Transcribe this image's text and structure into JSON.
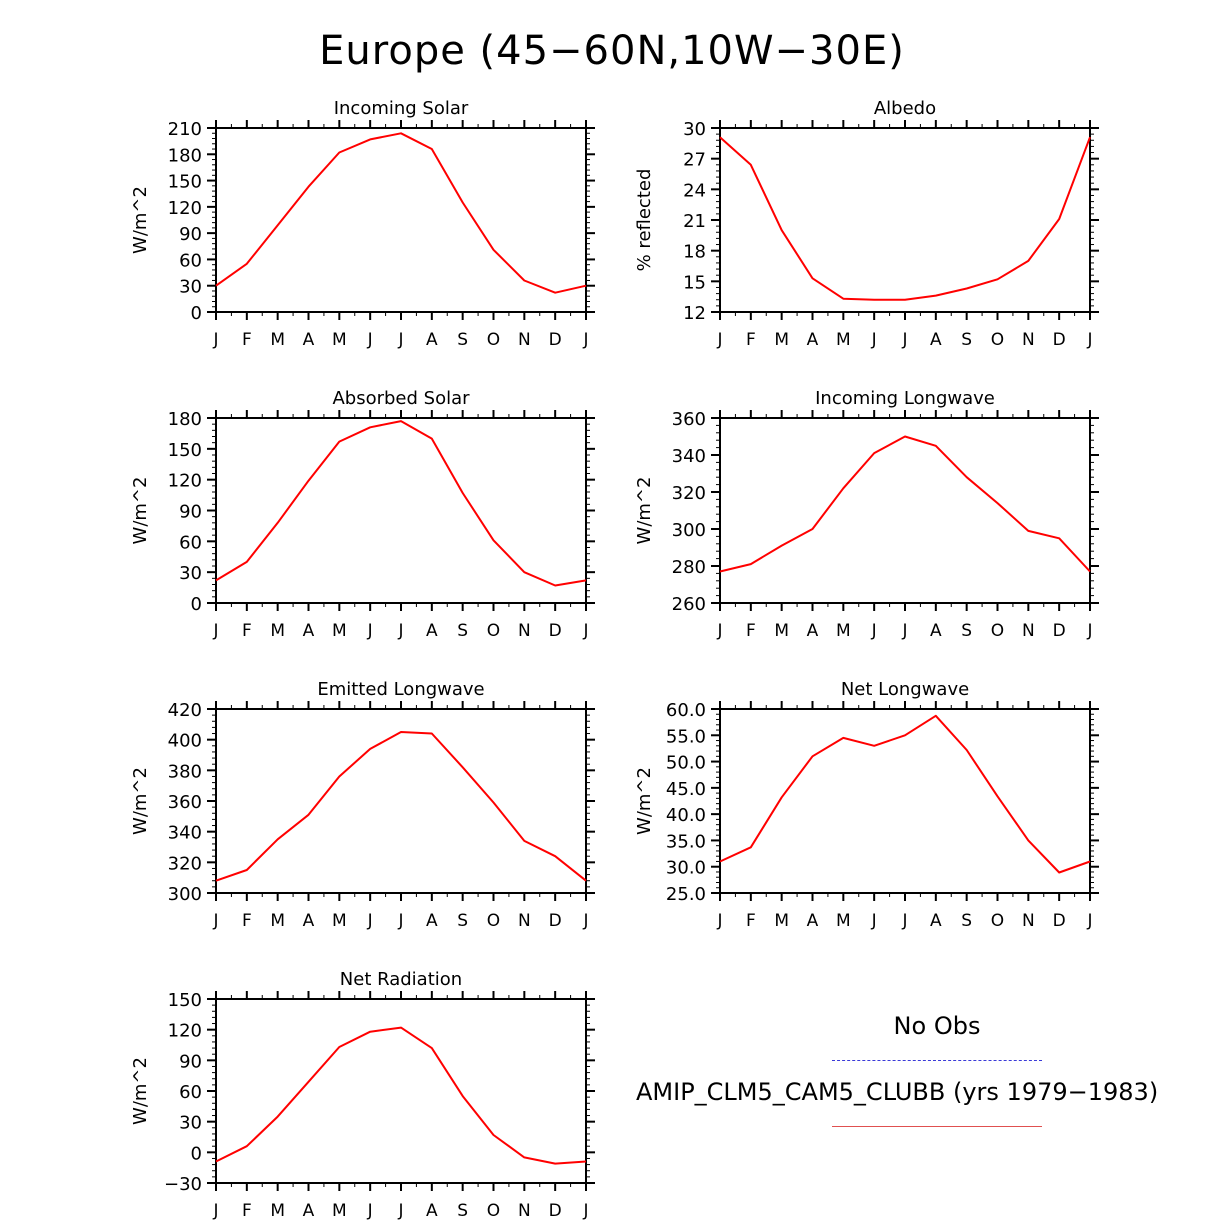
{
  "title": "Europe (45−60N,10W−30E)",
  "colors": {
    "model_line": "#ff0000",
    "obs_line": "#3a3ad8",
    "axis": "#000000"
  },
  "legend": {
    "obs_label": "No Obs",
    "model_label": "AMIP_CLM5_CAM5_CLUBB (yrs 1979−1983)"
  },
  "chart_data": [
    {
      "type": "line",
      "title": "Incoming Solar",
      "ylabel": "W/m^2",
      "categories": [
        "J",
        "F",
        "M",
        "A",
        "M",
        "J",
        "J",
        "A",
        "S",
        "O",
        "N",
        "D",
        "J"
      ],
      "yticks": [
        "0",
        "30",
        "60",
        "90",
        "120",
        "150",
        "180",
        "210"
      ],
      "ylim": [
        0,
        210
      ],
      "series": [
        {
          "name": "AMIP_CLM5_CAM5_CLUBB",
          "values": [
            30,
            55,
            99,
            143,
            182,
            197,
            204,
            186,
            125,
            71,
            36,
            22,
            30
          ]
        }
      ]
    },
    {
      "type": "line",
      "title": "Albedo",
      "ylabel": "% reflected",
      "categories": [
        "J",
        "F",
        "M",
        "A",
        "M",
        "J",
        "J",
        "A",
        "S",
        "O",
        "N",
        "D",
        "J"
      ],
      "yticks": [
        "12",
        "15",
        "18",
        "21",
        "24",
        "27",
        "30"
      ],
      "ylim": [
        12,
        30
      ],
      "series": [
        {
          "name": "AMIP_CLM5_CAM5_CLUBB",
          "values": [
            29.1,
            26.4,
            20.0,
            15.3,
            13.3,
            13.2,
            13.2,
            13.6,
            14.3,
            15.2,
            17.0,
            21.1,
            29.1
          ]
        }
      ]
    },
    {
      "type": "line",
      "title": "Absorbed Solar",
      "ylabel": "W/m^2",
      "categories": [
        "J",
        "F",
        "M",
        "A",
        "M",
        "J",
        "J",
        "A",
        "S",
        "O",
        "N",
        "D",
        "J"
      ],
      "yticks": [
        "0",
        "30",
        "60",
        "90",
        "120",
        "150",
        "180"
      ],
      "ylim": [
        0,
        180
      ],
      "series": [
        {
          "name": "AMIP_CLM5_CAM5_CLUBB",
          "values": [
            22,
            40,
            78,
            119,
            157,
            171,
            177,
            160,
            107,
            61,
            30,
            17,
            22
          ]
        }
      ]
    },
    {
      "type": "line",
      "title": "Incoming Longwave",
      "ylabel": "W/m^2",
      "categories": [
        "J",
        "F",
        "M",
        "A",
        "M",
        "J",
        "J",
        "A",
        "S",
        "O",
        "N",
        "D",
        "J"
      ],
      "yticks": [
        "260",
        "280",
        "300",
        "320",
        "340",
        "360"
      ],
      "ylim": [
        260,
        360
      ],
      "series": [
        {
          "name": "AMIP_CLM5_CAM5_CLUBB",
          "values": [
            277,
            281,
            291,
            300,
            322,
            341,
            350,
            345,
            328,
            314,
            299,
            295,
            277
          ]
        }
      ]
    },
    {
      "type": "line",
      "title": "Emitted Longwave",
      "ylabel": "W/m^2",
      "categories": [
        "J",
        "F",
        "M",
        "A",
        "M",
        "J",
        "J",
        "A",
        "S",
        "O",
        "N",
        "D",
        "J"
      ],
      "yticks": [
        "300",
        "320",
        "340",
        "360",
        "380",
        "400",
        "420"
      ],
      "ylim": [
        300,
        420
      ],
      "series": [
        {
          "name": "AMIP_CLM5_CAM5_CLUBB",
          "values": [
            308,
            315,
            335,
            351,
            376,
            394,
            405,
            404,
            382,
            359,
            334,
            324,
            308
          ]
        }
      ]
    },
    {
      "type": "line",
      "title": "Net Longwave",
      "ylabel": "W/m^2",
      "categories": [
        "J",
        "F",
        "M",
        "A",
        "M",
        "J",
        "J",
        "A",
        "S",
        "O",
        "N",
        "D",
        "J"
      ],
      "yticks": [
        "25.0",
        "30.0",
        "35.0",
        "40.0",
        "45.0",
        "50.0",
        "55.0",
        "60.0"
      ],
      "ylim": [
        25,
        60
      ],
      "series": [
        {
          "name": "AMIP_CLM5_CAM5_CLUBB",
          "values": [
            31.0,
            33.7,
            43.2,
            51.0,
            54.5,
            53.0,
            55.0,
            58.7,
            52.2,
            43.4,
            35.0,
            28.9,
            31.0
          ]
        }
      ]
    },
    {
      "type": "line",
      "title": "Net Radiation",
      "ylabel": "W/m^2",
      "categories": [
        "J",
        "F",
        "M",
        "A",
        "M",
        "J",
        "J",
        "A",
        "S",
        "O",
        "N",
        "D",
        "J"
      ],
      "yticks": [
        "−30",
        "0",
        "30",
        "60",
        "90",
        "120",
        "150"
      ],
      "ylim": [
        -30,
        150
      ],
      "series": [
        {
          "name": "AMIP_CLM5_CAM5_CLUBB",
          "values": [
            -9,
            6,
            35,
            69,
            103,
            118,
            122,
            102,
            55,
            17,
            -5,
            -11,
            -9
          ]
        }
      ]
    }
  ]
}
